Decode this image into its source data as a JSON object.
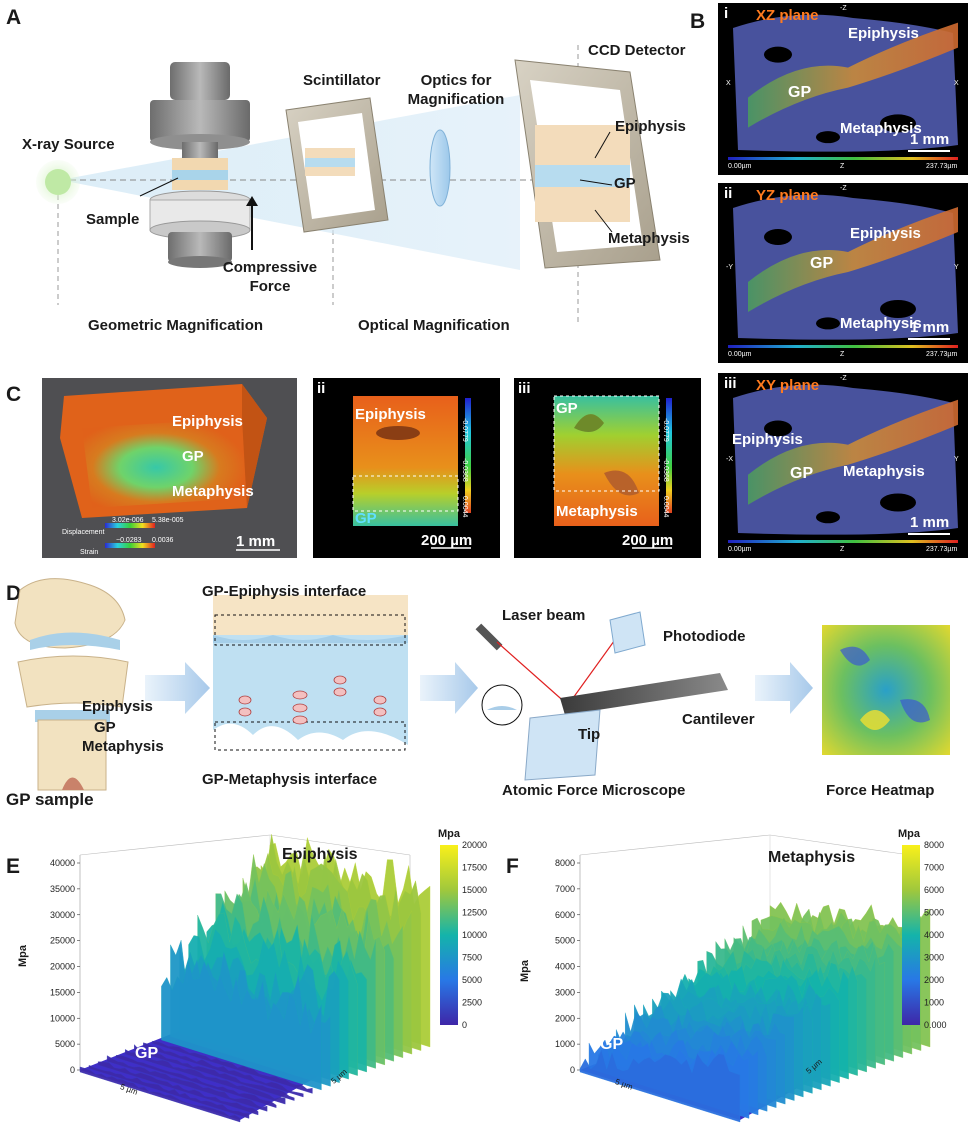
{
  "panelA": {
    "label": "A",
    "xray_source": "X-ray Source",
    "sample": "Sample",
    "compressive_force": "Compressive Force",
    "scintillator": "Scintillator",
    "optics": "Optics for Magnification",
    "ccd": "CCD Detector",
    "epiphysis": "Epiphysis",
    "gp": "GP",
    "metaphysis": "Metaphysis",
    "geometric": "Geometric Magnification",
    "optical": "Optical Magnification"
  },
  "panelB": {
    "label": "B",
    "sub": [
      {
        "num": "i",
        "title": "XZ plane",
        "epiphysis": "Epiphysis",
        "gp": "GP",
        "metaphysis": "Metaphysis",
        "scale": "1 mm",
        "left_axis": "X",
        "right_axis": "X",
        "top_axis": "-Z",
        "bottom_axis": "Z",
        "min": "0.00µm",
        "max": "237.73µm"
      },
      {
        "num": "ii",
        "title": "YZ plane",
        "epiphysis": "Epiphysis",
        "gp": "GP",
        "metaphysis": "Metaphysis",
        "scale": "1 mm",
        "left_axis": "-Y",
        "right_axis": "Y",
        "top_axis": "-Z",
        "bottom_axis": "Z",
        "min": "0.00µm",
        "max": "237.73µm"
      },
      {
        "num": "iii",
        "title": "XY plane",
        "epiphysis": "Epiphysis",
        "gp": "GP",
        "metaphysis": "Metaphysis",
        "scale": "1 mm",
        "left_axis": "-X",
        "right_axis": "Y",
        "top_axis": "-Z",
        "bottom_axis": "Z",
        "min": "0.00µm",
        "max": "237.73µm"
      }
    ]
  },
  "panelC": {
    "label": "C",
    "i": {
      "epiphysis": "Epiphysis",
      "gp": "GP",
      "metaphysis": "Metaphysis",
      "disp_label": "Displacement",
      "disp_min": "3.02e-006",
      "disp_max": "5.38e-005",
      "strain_label": "Strain",
      "strain_min": "−0.0283",
      "strain_max": "0.0036",
      "scale": "1 mm"
    },
    "ii": {
      "num": "ii",
      "epiphysis": "Epiphysis",
      "gp": "GP",
      "scale": "200 µm",
      "cb_top": "-0.0779",
      "cb_mid": "-0.0368",
      "cb_bot": "0.0044"
    },
    "iii": {
      "num": "iii",
      "gp": "GP",
      "metaphysis": "Metaphysis",
      "scale": "200 µm",
      "cb_top": "-0.0779",
      "cb_mid": "-0.0368",
      "cb_bot": "0.0044"
    }
  },
  "panelD": {
    "label": "D",
    "epiphysis": "Epiphysis",
    "gp": "GP",
    "metaphysis": "Metaphysis",
    "gp_sample": "GP sample",
    "gp_epi": "GP-Epiphysis interface",
    "gp_meta": "GP-Metaphysis interface",
    "laser": "Laser beam",
    "photodiode": "Photodiode",
    "cantilever": "Cantilever",
    "tip": "Tip",
    "afm": "Atomic Force Microscope",
    "heatmap": "Force Heatmap"
  },
  "chart_data": [
    {
      "panel": "E",
      "type": "surface3d",
      "title": "Epiphysis",
      "annotation": "GP",
      "zlabel": "Mpa",
      "z_ticks": [
        "0",
        "5000",
        "10000",
        "15000",
        "20000",
        "25000",
        "30000",
        "35000",
        "40000"
      ],
      "colorbar_title": "Mpa",
      "colorbar_ticks": [
        "20000",
        "17500",
        "15000",
        "12500",
        "10000",
        "7500",
        "5000",
        "2500",
        "0"
      ],
      "x_tick": "5 µm",
      "y_tick": "5 µm"
    },
    {
      "panel": "F",
      "type": "surface3d",
      "title": "Metaphysis",
      "annotation": "GP",
      "zlabel": "Mpa",
      "z_ticks": [
        "0",
        "1000",
        "2000",
        "3000",
        "4000",
        "5000",
        "6000",
        "7000",
        "8000"
      ],
      "colorbar_title": "Mpa",
      "colorbar_ticks": [
        "8000",
        "7000",
        "6000",
        "5000",
        "4000",
        "3000",
        "2000",
        "1000",
        "0.000"
      ],
      "x_tick": "5 µm",
      "y_tick": "5 µm"
    }
  ],
  "colors": {
    "orange": "#ff7a1e",
    "parula_low": "#3d2bd8",
    "parula_high": "#f9f01a"
  }
}
